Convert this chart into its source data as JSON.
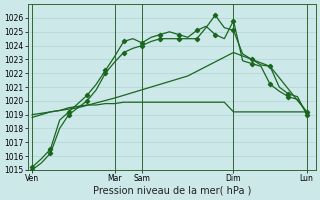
{
  "bg_color": "#cce8e8",
  "grid_color": "#b0d4d4",
  "line_color": "#1a6620",
  "vline_color": "#336633",
  "ylim": [
    1015,
    1027
  ],
  "yticks": [
    1015,
    1016,
    1017,
    1018,
    1019,
    1020,
    1021,
    1022,
    1023,
    1024,
    1025,
    1026
  ],
  "xlabel": "Pression niveau de la mer( hPa )",
  "xtick_labels": [
    "Ven",
    "Mar",
    "Sam",
    "Dim",
    "Lun"
  ],
  "xtick_positions": [
    0,
    9,
    12,
    22,
    30
  ],
  "vlines": [
    0,
    9,
    12,
    22,
    30
  ],
  "xlim": [
    -0.5,
    31
  ],
  "line1_x": [
    0,
    1,
    2,
    3,
    4,
    5,
    6,
    7,
    8,
    9,
    10,
    11,
    12,
    13,
    14,
    15,
    16,
    17,
    18,
    19,
    20,
    21,
    22,
    23,
    24,
    25,
    26,
    27,
    28,
    29,
    30
  ],
  "line1_y": [
    1018.8,
    1019.0,
    1019.2,
    1019.3,
    1019.5,
    1019.6,
    1019.7,
    1019.7,
    1019.8,
    1019.8,
    1019.9,
    1019.9,
    1019.9,
    1019.9,
    1019.9,
    1019.9,
    1019.9,
    1019.9,
    1019.9,
    1019.9,
    1019.9,
    1019.9,
    1019.2,
    1019.2,
    1019.2,
    1019.2,
    1019.2,
    1019.2,
    1019.2,
    1019.2,
    1019.2
  ],
  "line2_x": [
    0,
    5,
    9,
    12,
    17,
    22,
    26,
    30
  ],
  "line2_y": [
    1019.0,
    1019.5,
    1020.2,
    1020.8,
    1021.8,
    1023.5,
    1022.5,
    1019.2
  ],
  "line3_x": [
    0,
    1,
    2,
    3,
    4,
    5,
    6,
    7,
    8,
    9,
    10,
    11,
    12,
    13,
    14,
    15,
    16,
    17,
    18,
    19,
    20,
    21,
    22,
    23,
    24,
    25,
    26,
    27,
    28,
    29,
    30
  ],
  "line3_y": [
    1015.2,
    1015.8,
    1016.5,
    1018.6,
    1019.2,
    1019.8,
    1020.4,
    1021.2,
    1022.2,
    1023.2,
    1024.3,
    1024.5,
    1024.2,
    1024.6,
    1024.8,
    1025.0,
    1024.8,
    1024.6,
    1025.1,
    1025.4,
    1024.8,
    1024.5,
    1025.8,
    1022.9,
    1022.7,
    1022.5,
    1021.2,
    1020.7,
    1020.3,
    1020.1,
    1019.2
  ],
  "line4_x": [
    0,
    1,
    2,
    3,
    4,
    5,
    6,
    7,
    8,
    9,
    10,
    11,
    12,
    13,
    14,
    15,
    16,
    17,
    18,
    19,
    20,
    21,
    22,
    23,
    24,
    25,
    26,
    27,
    28,
    29,
    30
  ],
  "line4_y": [
    1015.0,
    1015.5,
    1016.2,
    1018.0,
    1019.0,
    1019.5,
    1020.0,
    1020.8,
    1022.0,
    1022.8,
    1023.5,
    1023.8,
    1024.0,
    1024.3,
    1024.5,
    1024.5,
    1024.5,
    1024.5,
    1024.5,
    1025.3,
    1026.2,
    1025.3,
    1025.1,
    1023.4,
    1023.0,
    1022.6,
    1022.5,
    1021.0,
    1020.5,
    1020.3,
    1019.0
  ],
  "tick_fontsize": 5.5,
  "xlabel_fontsize": 7
}
